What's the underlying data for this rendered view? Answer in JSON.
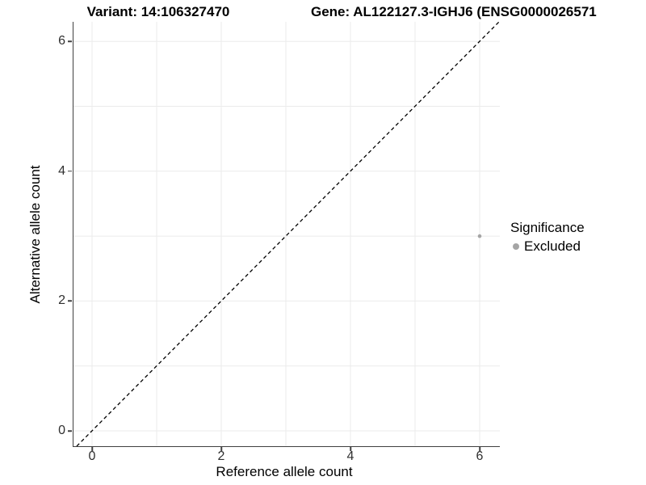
{
  "plot": {
    "title_left": "Variant: 14:106327470",
    "title_right": "Gene: AL122127.3-IGHJ6 (ENSG0000026571",
    "legend": {
      "title": "Significance",
      "entries": [
        {
          "label": "Excluded",
          "color": "#a5a5a5"
        }
      ]
    }
  },
  "chart_data": {
    "type": "scatter",
    "title_left": "Variant: 14:106327470",
    "title_right": "Gene: AL122127.3-IGHJ6 (ENSG0000026571",
    "xlabel": "Reference allele count",
    "ylabel": "Alternative allele count",
    "xlim": [
      -0.3,
      6.3
    ],
    "ylim": [
      -0.3,
      6.3
    ],
    "x_ticks": [
      0,
      2,
      4,
      6
    ],
    "y_ticks": [
      0,
      2,
      4,
      6
    ],
    "grid": {
      "show": true,
      "interval": 1,
      "min": 0,
      "max": 6,
      "color": "#ebebeb"
    },
    "identity_line": {
      "type": "y=x",
      "style": "dashed",
      "color": "#000000"
    },
    "series": [
      {
        "name": "Excluded",
        "color": "#a5a5a5",
        "points": [
          {
            "x": 6,
            "y": 3
          }
        ]
      }
    ],
    "legend": {
      "title": "Significance",
      "entries": [
        "Excluded"
      ],
      "position": "right"
    }
  }
}
